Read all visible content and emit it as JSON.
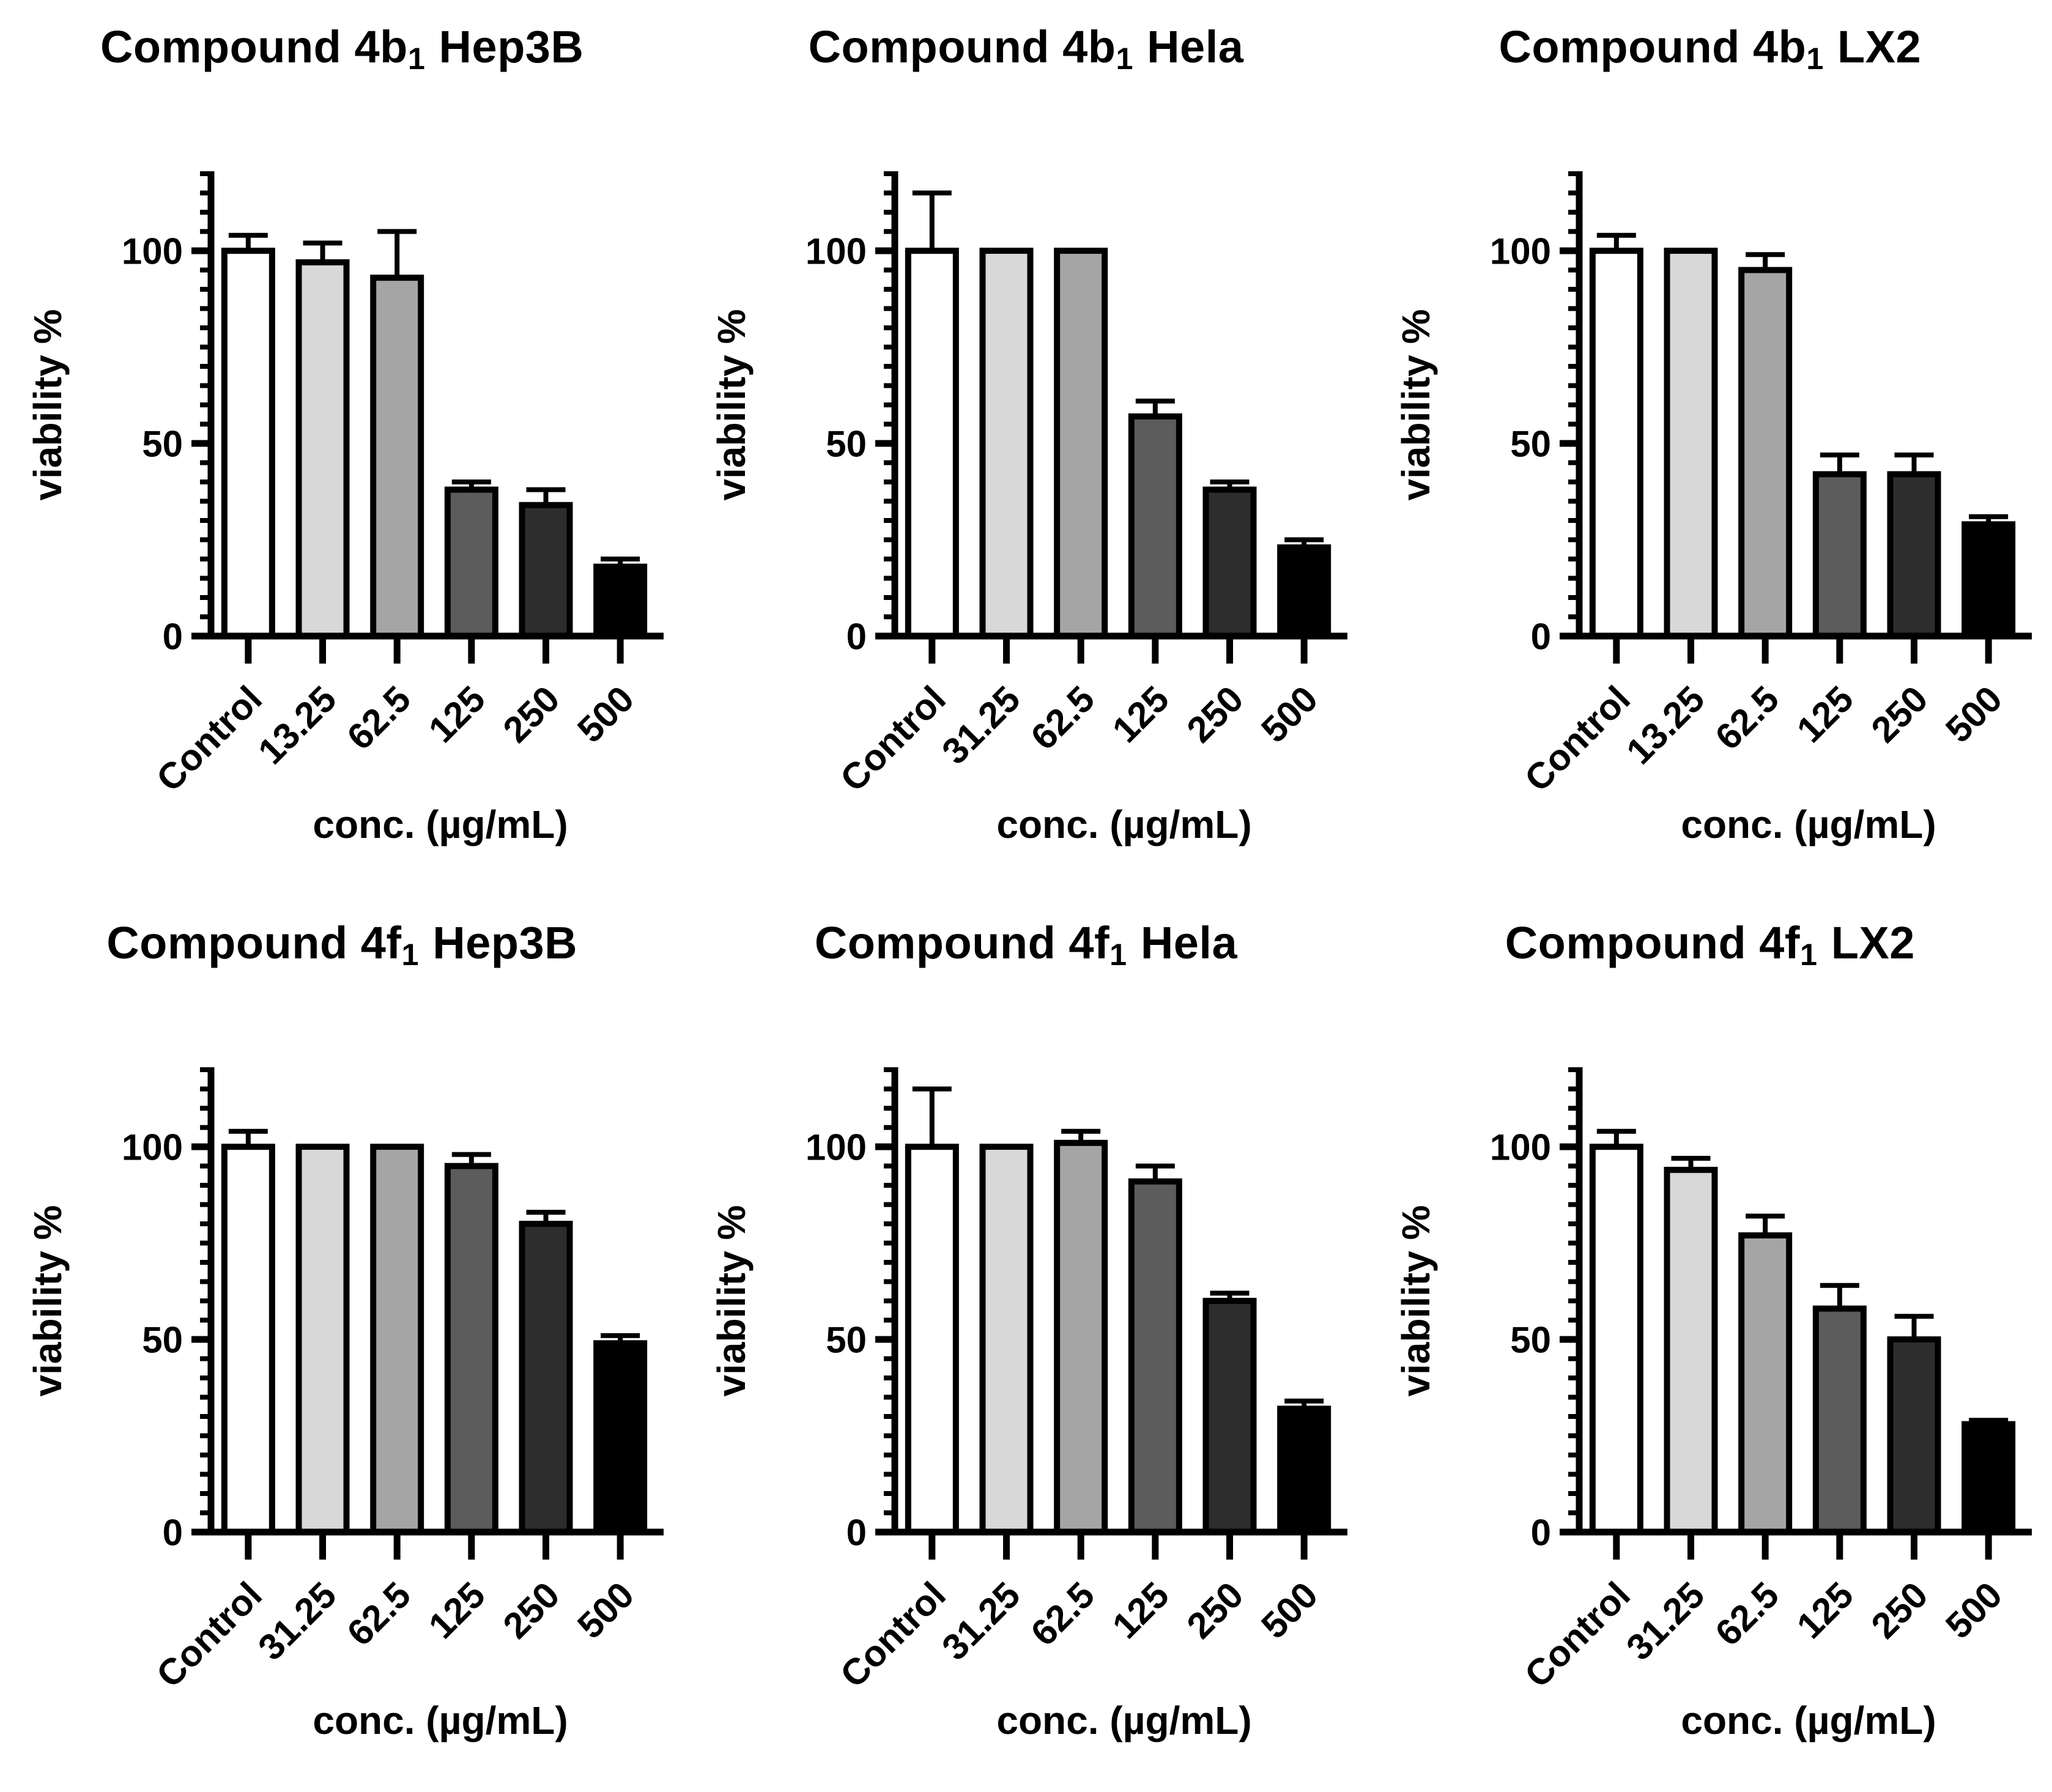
{
  "figure": {
    "background": "#ffffff",
    "text_color": "#000000",
    "bar_fill_colors": [
      "#ffffff",
      "#d8d8d8",
      "#a5a5a5",
      "#5c5c5c",
      "#2d2d2d",
      "#000000"
    ],
    "bar_border_color": "#000000"
  },
  "chart_data": [
    {
      "type": "bar",
      "title_main": "Compound 4b",
      "title_sub": "1",
      "title_rest": "Hep3B",
      "categories": [
        "Control",
        "13.25",
        "62.5",
        "125",
        "250",
        "500"
      ],
      "values": [
        100,
        97,
        93,
        38,
        34,
        18
      ],
      "errors": [
        4,
        5,
        12,
        2,
        4,
        2
      ],
      "xlabel": "conc. (µg/mL)",
      "ylabel": "viability %",
      "yticks": [
        0,
        50,
        100
      ],
      "ylim": [
        0,
        120
      ],
      "minor_tick_step": 5,
      "grid": "off",
      "legend": "none"
    },
    {
      "type": "bar",
      "title_main": "Compound 4b",
      "title_sub": "1",
      "title_rest": "Hela",
      "categories": [
        "Control",
        "31.25",
        "62.5",
        "125",
        "250",
        "500"
      ],
      "values": [
        100,
        100,
        100,
        57,
        38,
        23
      ],
      "errors": [
        15,
        0,
        0,
        4,
        2,
        2
      ],
      "xlabel": "conc. (µg/mL)",
      "ylabel": "viability %",
      "yticks": [
        0,
        50,
        100
      ],
      "ylim": [
        0,
        120
      ],
      "minor_tick_step": 5,
      "grid": "off",
      "legend": "none"
    },
    {
      "type": "bar",
      "title_main": "Compound 4b",
      "title_sub": "1",
      "title_rest": "LX2",
      "categories": [
        "Control",
        "13.25",
        "62.5",
        "125",
        "250",
        "500"
      ],
      "values": [
        100,
        100,
        95,
        42,
        42,
        29
      ],
      "errors": [
        4,
        0,
        4,
        5,
        5,
        2
      ],
      "xlabel": "conc. (µg/mL)",
      "ylabel": "viability %",
      "yticks": [
        0,
        50,
        100
      ],
      "ylim": [
        0,
        120
      ],
      "minor_tick_step": 5,
      "grid": "off",
      "legend": "none"
    },
    {
      "type": "bar",
      "title_main": "Compound 4f",
      "title_sub": "1",
      "title_rest": "Hep3B",
      "categories": [
        "Control",
        "31.25",
        "62.5",
        "125",
        "250",
        "500"
      ],
      "values": [
        100,
        100,
        100,
        95,
        80,
        49
      ],
      "errors": [
        4,
        0,
        0,
        3,
        3,
        2
      ],
      "xlabel": "conc. (µg/mL)",
      "ylabel": "viability %",
      "yticks": [
        0,
        50,
        100
      ],
      "ylim": [
        0,
        120
      ],
      "minor_tick_step": 5,
      "grid": "off",
      "legend": "none"
    },
    {
      "type": "bar",
      "title_main": "Compound 4f",
      "title_sub": "1",
      "title_rest": "Hela",
      "categories": [
        "Control",
        "31.25",
        "62.5",
        "125",
        "250",
        "500"
      ],
      "values": [
        100,
        100,
        101,
        91,
        60,
        32
      ],
      "errors": [
        15,
        0,
        3,
        4,
        2,
        2
      ],
      "xlabel": "conc. (µg/mL)",
      "ylabel": "viability %",
      "yticks": [
        0,
        50,
        100
      ],
      "ylim": [
        0,
        120
      ],
      "minor_tick_step": 5,
      "grid": "off",
      "legend": "none"
    },
    {
      "type": "bar",
      "title_main": "Compound 4f",
      "title_sub": "1",
      "title_rest": "LX2",
      "categories": [
        "Control",
        "31.25",
        "62.5",
        "125",
        "250",
        "500"
      ],
      "values": [
        100,
        94,
        77,
        58,
        50,
        28
      ],
      "errors": [
        4,
        3,
        5,
        6,
        6,
        1
      ],
      "xlabel": "conc. (µg/mL)",
      "ylabel": "viability %",
      "yticks": [
        0,
        50,
        100
      ],
      "ylim": [
        0,
        120
      ],
      "minor_tick_step": 5,
      "grid": "off",
      "legend": "none"
    }
  ]
}
